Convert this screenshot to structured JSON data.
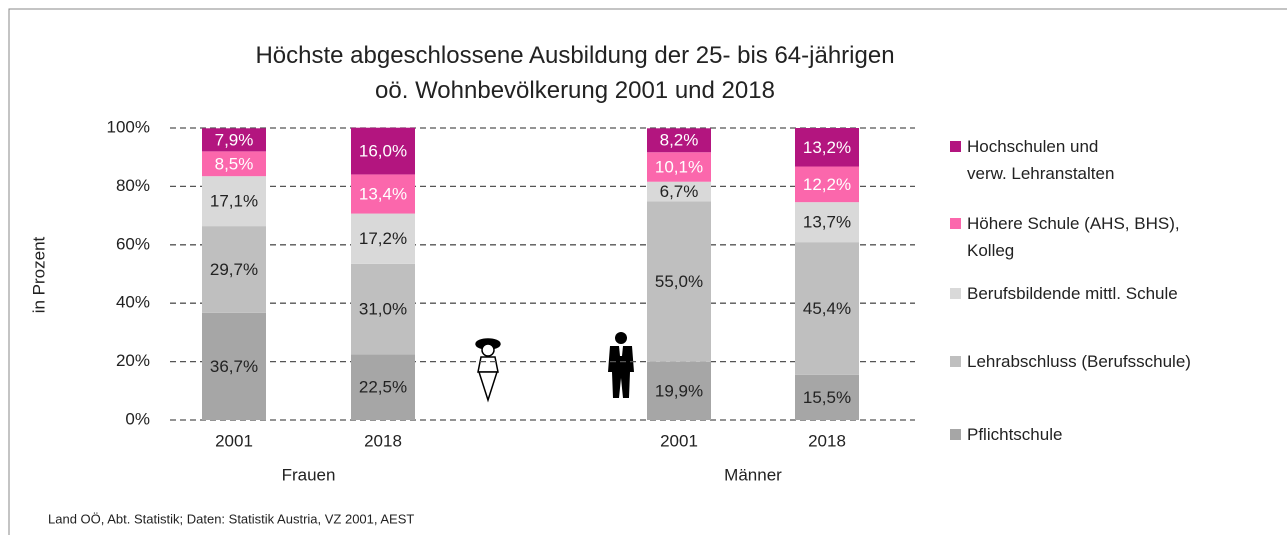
{
  "chart_data": {
    "type": "stacked_bar",
    "title": "Höchste abgeschlossene Ausbildung der 25- bis 64-jährigen\noö. Wohnbevölkerung 2001 und 2018",
    "ylabel": "in Prozent",
    "source": "Land OÖ, Abt. Statistik; Daten: Statistik Austria, VZ 2001, AEST",
    "categories": [
      "2001",
      "2018",
      "2001",
      "2018"
    ],
    "groups": [
      "Frauen",
      "Männer"
    ],
    "ylim": [
      0,
      100
    ],
    "yticks": [
      {
        "value": 0,
        "label": "0%"
      },
      {
        "value": 20,
        "label": "20%"
      },
      {
        "value": 40,
        "label": "40%"
      },
      {
        "value": 60,
        "label": "60%"
      },
      {
        "value": 80,
        "label": "80%"
      },
      {
        "value": 100,
        "label": "100%"
      }
    ],
    "grid": true,
    "series": [
      {
        "name": "Pflichtschule",
        "color": "#a6a6a6",
        "values": [
          36.7,
          22.5,
          19.9,
          15.5
        ],
        "value_labels": [
          "36,7%",
          "22,5%",
          "19,9%",
          "15,5%"
        ]
      },
      {
        "name": "Lehrabschluss (Berufsschule)",
        "color": "#bfbfbf",
        "values": [
          29.7,
          31.0,
          55.0,
          45.4
        ],
        "value_labels": [
          "29,7%",
          "31,0%",
          "55,0%",
          "45,4%"
        ]
      },
      {
        "name": "Berufsbildende mittl. Schule",
        "color": "#d9d9d9",
        "values": [
          17.1,
          17.2,
          6.7,
          13.7
        ],
        "value_labels": [
          "17,1%",
          "17,2%",
          "6,7%",
          "13,7%"
        ]
      },
      {
        "name": "Höhere Schule (AHS, BHS),\nKolleg",
        "color": "#fb67ac",
        "values": [
          8.5,
          13.4,
          10.1,
          12.2
        ],
        "value_labels": [
          "8,5%",
          "13,4%",
          "10,1%",
          "12,2%"
        ]
      },
      {
        "name": "Hochschulen und\nverw. Lehranstalten",
        "color": "#b3157f",
        "values": [
          7.9,
          16.0,
          8.2,
          13.2
        ],
        "value_labels": [
          "7,9%",
          "16,0%",
          "8,2%",
          "13,2%"
        ]
      }
    ]
  }
}
